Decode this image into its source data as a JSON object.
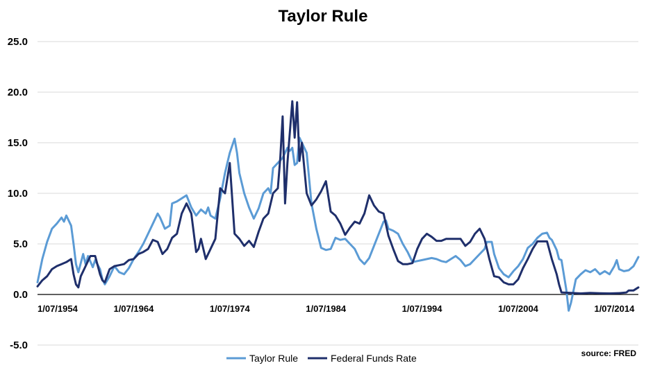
{
  "chart_data": {
    "type": "line",
    "title": "Taylor Rule",
    "xlabel": "",
    "ylabel": "",
    "ylim": [
      -5,
      25
    ],
    "xlim": [
      1954.5,
      2017.0
    ],
    "yticks": [
      "25.0",
      "20.0",
      "15.0",
      "10.0",
      "5.0",
      "0.0",
      "-5.0"
    ],
    "ytick_values": [
      25,
      20,
      15,
      10,
      5,
      0,
      -5
    ],
    "xticks": [
      "1/07/1954",
      "1/07/1964",
      "1/07/1974",
      "1/07/1984",
      "1/07/1994",
      "1/07/2004",
      "1/07/2014"
    ],
    "xtick_values": [
      1954.5,
      1964.5,
      1974.5,
      1984.5,
      1994.5,
      2004.5,
      2014.5
    ],
    "grid": true,
    "legend_position": "bottom",
    "source": "source: FRED",
    "colors": {
      "taylor_rule": "#5b9bd5",
      "fed_funds": "#1f2f6b"
    },
    "series": [
      {
        "name": "Taylor Rule",
        "color": "#5b9bd5",
        "points": [
          [
            1954.5,
            1.2
          ],
          [
            1955.0,
            3.5
          ],
          [
            1955.5,
            5.2
          ],
          [
            1956.0,
            6.5
          ],
          [
            1956.5,
            7.0
          ],
          [
            1957.0,
            7.6
          ],
          [
            1957.25,
            7.2
          ],
          [
            1957.5,
            7.8
          ],
          [
            1958.0,
            6.8
          ],
          [
            1958.25,
            5.0
          ],
          [
            1958.5,
            3.0
          ],
          [
            1958.75,
            2.2
          ],
          [
            1959.25,
            4.0
          ],
          [
            1959.5,
            3.0
          ],
          [
            1959.75,
            3.8
          ],
          [
            1960.25,
            2.7
          ],
          [
            1960.5,
            3.4
          ],
          [
            1961.0,
            2.5
          ],
          [
            1961.25,
            1.5
          ],
          [
            1961.5,
            1.0
          ],
          [
            1962.0,
            1.8
          ],
          [
            1962.5,
            2.8
          ],
          [
            1963.0,
            2.2
          ],
          [
            1963.5,
            2.0
          ],
          [
            1964.0,
            2.6
          ],
          [
            1964.5,
            3.5
          ],
          [
            1965.0,
            4.2
          ],
          [
            1965.5,
            5.0
          ],
          [
            1966.0,
            6.0
          ],
          [
            1966.5,
            7.0
          ],
          [
            1967.0,
            8.0
          ],
          [
            1967.25,
            7.6
          ],
          [
            1967.75,
            6.5
          ],
          [
            1968.25,
            6.8
          ],
          [
            1968.5,
            9.0
          ],
          [
            1969.0,
            9.2
          ],
          [
            1969.5,
            9.5
          ],
          [
            1970.0,
            9.8
          ],
          [
            1970.5,
            8.6
          ],
          [
            1971.0,
            7.8
          ],
          [
            1971.5,
            8.4
          ],
          [
            1972.0,
            8.0
          ],
          [
            1972.25,
            8.6
          ],
          [
            1972.5,
            7.8
          ],
          [
            1973.0,
            7.5
          ],
          [
            1973.5,
            9.5
          ],
          [
            1974.0,
            12.0
          ],
          [
            1974.25,
            13.0
          ],
          [
            1974.5,
            14.0
          ],
          [
            1975.0,
            15.4
          ],
          [
            1975.25,
            14.0
          ],
          [
            1975.5,
            12.0
          ],
          [
            1976.0,
            10.0
          ],
          [
            1976.5,
            8.6
          ],
          [
            1977.0,
            7.5
          ],
          [
            1977.5,
            8.5
          ],
          [
            1978.0,
            10.0
          ],
          [
            1978.5,
            10.5
          ],
          [
            1978.75,
            10.0
          ],
          [
            1979.0,
            12.5
          ],
          [
            1979.5,
            13.0
          ],
          [
            1980.0,
            13.5
          ],
          [
            1980.5,
            14.5
          ],
          [
            1980.75,
            14.2
          ],
          [
            1981.0,
            14.5
          ],
          [
            1981.25,
            12.8
          ],
          [
            1981.5,
            13.0
          ],
          [
            1981.75,
            15.5
          ],
          [
            1982.0,
            15.0
          ],
          [
            1982.5,
            14.0
          ],
          [
            1983.0,
            9.0
          ],
          [
            1983.5,
            6.5
          ],
          [
            1984.0,
            4.6
          ],
          [
            1984.5,
            4.4
          ],
          [
            1985.0,
            4.5
          ],
          [
            1985.5,
            5.6
          ],
          [
            1986.0,
            5.4
          ],
          [
            1986.5,
            5.5
          ],
          [
            1987.0,
            5.0
          ],
          [
            1987.5,
            4.5
          ],
          [
            1988.0,
            3.5
          ],
          [
            1988.5,
            3.0
          ],
          [
            1989.0,
            3.6
          ],
          [
            1989.5,
            4.8
          ],
          [
            1990.0,
            6.0
          ],
          [
            1990.5,
            7.2
          ],
          [
            1990.75,
            7.3
          ],
          [
            1991.0,
            6.5
          ],
          [
            1991.5,
            6.3
          ],
          [
            1992.0,
            6.0
          ],
          [
            1992.5,
            5.0
          ],
          [
            1993.0,
            4.2
          ],
          [
            1993.5,
            3.2
          ],
          [
            1994.0,
            3.3
          ],
          [
            1994.5,
            3.4
          ],
          [
            1995.0,
            3.5
          ],
          [
            1995.5,
            3.6
          ],
          [
            1996.0,
            3.5
          ],
          [
            1996.5,
            3.3
          ],
          [
            1997.0,
            3.2
          ],
          [
            1997.5,
            3.5
          ],
          [
            1998.0,
            3.8
          ],
          [
            1998.5,
            3.4
          ],
          [
            1999.0,
            2.8
          ],
          [
            1999.5,
            3.0
          ],
          [
            2000.0,
            3.5
          ],
          [
            2000.5,
            4.0
          ],
          [
            2001.0,
            4.5
          ],
          [
            2001.25,
            5.2
          ],
          [
            2001.75,
            5.2
          ],
          [
            2002.0,
            4.0
          ],
          [
            2002.5,
            2.6
          ],
          [
            2003.0,
            2.0
          ],
          [
            2003.5,
            1.7
          ],
          [
            2004.0,
            2.3
          ],
          [
            2004.5,
            2.8
          ],
          [
            2005.0,
            3.5
          ],
          [
            2005.5,
            4.6
          ],
          [
            2006.0,
            5.0
          ],
          [
            2006.5,
            5.6
          ],
          [
            2007.0,
            6.0
          ],
          [
            2007.5,
            6.1
          ],
          [
            2007.75,
            5.6
          ],
          [
            2008.0,
            5.4
          ],
          [
            2008.5,
            4.4
          ],
          [
            2008.75,
            3.5
          ],
          [
            2009.0,
            3.4
          ],
          [
            2009.5,
            0.5
          ],
          [
            2009.75,
            -1.6
          ],
          [
            2010.0,
            -0.8
          ],
          [
            2010.5,
            1.5
          ],
          [
            2011.0,
            2.0
          ],
          [
            2011.5,
            2.4
          ],
          [
            2012.0,
            2.2
          ],
          [
            2012.5,
            2.5
          ],
          [
            2013.0,
            2.0
          ],
          [
            2013.5,
            2.3
          ],
          [
            2014.0,
            2.0
          ],
          [
            2014.5,
            2.8
          ],
          [
            2014.75,
            3.4
          ],
          [
            2015.0,
            2.5
          ],
          [
            2015.5,
            2.3
          ],
          [
            2016.0,
            2.4
          ],
          [
            2016.5,
            2.8
          ],
          [
            2017.0,
            3.7
          ]
        ]
      },
      {
        "name": "Federal Funds Rate",
        "color": "#1f2f6b",
        "points": [
          [
            1954.5,
            0.8
          ],
          [
            1955.0,
            1.4
          ],
          [
            1955.5,
            1.8
          ],
          [
            1956.0,
            2.5
          ],
          [
            1956.5,
            2.8
          ],
          [
            1957.0,
            3.0
          ],
          [
            1957.5,
            3.2
          ],
          [
            1958.0,
            3.5
          ],
          [
            1958.25,
            2.0
          ],
          [
            1958.5,
            1.0
          ],
          [
            1958.75,
            0.7
          ],
          [
            1959.0,
            1.8
          ],
          [
            1959.5,
            2.8
          ],
          [
            1960.0,
            3.8
          ],
          [
            1960.5,
            3.8
          ],
          [
            1961.0,
            2.0
          ],
          [
            1961.25,
            1.4
          ],
          [
            1961.5,
            1.2
          ],
          [
            1962.0,
            2.5
          ],
          [
            1962.5,
            2.8
          ],
          [
            1963.0,
            2.9
          ],
          [
            1963.5,
            3.0
          ],
          [
            1964.0,
            3.4
          ],
          [
            1964.5,
            3.5
          ],
          [
            1965.0,
            4.0
          ],
          [
            1965.5,
            4.2
          ],
          [
            1966.0,
            4.5
          ],
          [
            1966.5,
            5.4
          ],
          [
            1967.0,
            5.2
          ],
          [
            1967.5,
            4.0
          ],
          [
            1968.0,
            4.5
          ],
          [
            1968.5,
            5.6
          ],
          [
            1969.0,
            6.0
          ],
          [
            1969.5,
            8.0
          ],
          [
            1970.0,
            9.0
          ],
          [
            1970.5,
            8.0
          ],
          [
            1971.0,
            4.2
          ],
          [
            1971.25,
            4.5
          ],
          [
            1971.5,
            5.5
          ],
          [
            1972.0,
            3.5
          ],
          [
            1972.5,
            4.5
          ],
          [
            1973.0,
            5.5
          ],
          [
            1973.5,
            10.5
          ],
          [
            1974.0,
            10.0
          ],
          [
            1974.5,
            13.0
          ],
          [
            1975.0,
            6.0
          ],
          [
            1975.5,
            5.5
          ],
          [
            1976.0,
            4.8
          ],
          [
            1976.5,
            5.3
          ],
          [
            1977.0,
            4.7
          ],
          [
            1977.5,
            6.2
          ],
          [
            1978.0,
            7.5
          ],
          [
            1978.5,
            8.0
          ],
          [
            1979.0,
            10.0
          ],
          [
            1979.5,
            10.5
          ],
          [
            1979.75,
            13.5
          ],
          [
            1980.0,
            17.6
          ],
          [
            1980.25,
            9.0
          ],
          [
            1980.5,
            13.0
          ],
          [
            1981.0,
            19.1
          ],
          [
            1981.25,
            15.5
          ],
          [
            1981.5,
            19.0
          ],
          [
            1981.75,
            13.2
          ],
          [
            1982.0,
            15.0
          ],
          [
            1982.5,
            10.0
          ],
          [
            1983.0,
            8.8
          ],
          [
            1983.5,
            9.4
          ],
          [
            1984.0,
            10.2
          ],
          [
            1984.5,
            11.2
          ],
          [
            1985.0,
            8.2
          ],
          [
            1985.5,
            7.8
          ],
          [
            1986.0,
            7.0
          ],
          [
            1986.5,
            5.9
          ],
          [
            1987.0,
            6.6
          ],
          [
            1987.5,
            7.2
          ],
          [
            1988.0,
            7.0
          ],
          [
            1988.5,
            8.0
          ],
          [
            1989.0,
            9.8
          ],
          [
            1989.5,
            8.8
          ],
          [
            1990.0,
            8.2
          ],
          [
            1990.5,
            8.0
          ],
          [
            1991.0,
            5.8
          ],
          [
            1991.5,
            4.5
          ],
          [
            1992.0,
            3.3
          ],
          [
            1992.5,
            3.0
          ],
          [
            1993.0,
            3.0
          ],
          [
            1993.5,
            3.1
          ],
          [
            1994.0,
            4.5
          ],
          [
            1994.5,
            5.5
          ],
          [
            1995.0,
            6.0
          ],
          [
            1995.5,
            5.7
          ],
          [
            1996.0,
            5.3
          ],
          [
            1996.5,
            5.3
          ],
          [
            1997.0,
            5.5
          ],
          [
            1997.5,
            5.5
          ],
          [
            1998.0,
            5.5
          ],
          [
            1998.5,
            5.5
          ],
          [
            1999.0,
            4.8
          ],
          [
            1999.5,
            5.2
          ],
          [
            2000.0,
            6.0
          ],
          [
            2000.5,
            6.5
          ],
          [
            2001.0,
            5.5
          ],
          [
            2001.5,
            3.5
          ],
          [
            2002.0,
            1.8
          ],
          [
            2002.5,
            1.7
          ],
          [
            2003.0,
            1.2
          ],
          [
            2003.5,
            1.0
          ],
          [
            2004.0,
            1.0
          ],
          [
            2004.5,
            1.5
          ],
          [
            2005.0,
            2.6
          ],
          [
            2005.5,
            3.5
          ],
          [
            2006.0,
            4.5
          ],
          [
            2006.5,
            5.25
          ],
          [
            2007.0,
            5.25
          ],
          [
            2007.5,
            5.25
          ],
          [
            2008.0,
            3.5
          ],
          [
            2008.5,
            2.0
          ],
          [
            2008.75,
            1.0
          ],
          [
            2009.0,
            0.2
          ],
          [
            2010.0,
            0.15
          ],
          [
            2011.0,
            0.1
          ],
          [
            2012.0,
            0.15
          ],
          [
            2013.0,
            0.12
          ],
          [
            2014.0,
            0.1
          ],
          [
            2015.0,
            0.13
          ],
          [
            2015.75,
            0.2
          ],
          [
            2016.0,
            0.4
          ],
          [
            2016.5,
            0.4
          ],
          [
            2017.0,
            0.7
          ]
        ]
      }
    ]
  }
}
